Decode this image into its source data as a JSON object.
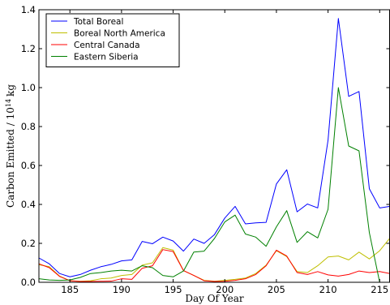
{
  "chart_data": {
    "type": "line",
    "title": "",
    "xlabel": "Day Of Year",
    "ylabel": "Carbon Emitted / 10",
    "ylabel_exponent": "14",
    "ylabel_unit": "kg",
    "xlim": [
      182,
      216
    ],
    "ylim": [
      0,
      1.4
    ],
    "xticks": [
      "185",
      "190",
      "195",
      "200",
      "205",
      "210",
      "215"
    ],
    "yticks": [
      "0.0",
      "0.2",
      "0.4",
      "0.6",
      "0.8",
      "1.0",
      "1.2",
      "1.4"
    ],
    "x": [
      182,
      183,
      184,
      185,
      186,
      187,
      188,
      189,
      190,
      191,
      192,
      193,
      194,
      195,
      196,
      197,
      198,
      199,
      200,
      201,
      202,
      203,
      204,
      205,
      206,
      207,
      208,
      209,
      210,
      211,
      212,
      213,
      214,
      215,
      216
    ],
    "grid": false,
    "legend_position": "top-left",
    "series": [
      {
        "name": "Total Boreal",
        "color": "#0000ff",
        "values": [
          0.125,
          0.095,
          0.045,
          0.028,
          0.04,
          0.062,
          0.08,
          0.092,
          0.11,
          0.115,
          0.21,
          0.198,
          0.232,
          0.212,
          0.16,
          0.222,
          0.2,
          0.245,
          0.33,
          0.39,
          0.3,
          0.305,
          0.308,
          0.505,
          0.578,
          0.362,
          0.402,
          0.382,
          0.73,
          1.355,
          0.955,
          0.98,
          0.48,
          0.382,
          0.39
        ]
      },
      {
        "name": "Boreal North America",
        "color": "#bfbf00",
        "values": [
          0.09,
          0.08,
          0.032,
          0.008,
          0.005,
          0.008,
          0.018,
          0.022,
          0.035,
          0.04,
          0.088,
          0.1,
          0.178,
          0.165,
          0.06,
          0.035,
          0.01,
          0.005,
          0.01,
          0.015,
          0.022,
          0.045,
          0.088,
          0.162,
          0.132,
          0.055,
          0.05,
          0.085,
          0.13,
          0.135,
          0.115,
          0.155,
          0.12,
          0.162,
          0.228
        ]
      },
      {
        "name": "Central Canada",
        "color": "#ff0000",
        "values": [
          0.095,
          0.075,
          0.03,
          0.008,
          0.004,
          0.004,
          0.005,
          0.006,
          0.018,
          0.015,
          0.072,
          0.085,
          0.168,
          0.158,
          0.06,
          0.035,
          0.008,
          0.004,
          0.005,
          0.01,
          0.018,
          0.04,
          0.085,
          0.165,
          0.135,
          0.05,
          0.04,
          0.055,
          0.038,
          0.032,
          0.04,
          0.058,
          0.05,
          0.055,
          0.045
        ]
      },
      {
        "name": "Eastern Siberia",
        "color": "#008000",
        "values": [
          0.018,
          0.012,
          0.01,
          0.012,
          0.025,
          0.045,
          0.05,
          0.058,
          0.062,
          0.058,
          0.085,
          0.075,
          0.035,
          0.028,
          0.058,
          0.155,
          0.16,
          0.225,
          0.31,
          0.345,
          0.248,
          0.232,
          0.185,
          0.285,
          0.368,
          0.205,
          0.26,
          0.228,
          0.375,
          1.0,
          0.7,
          0.675,
          0.255,
          0.0,
          0.0
        ]
      }
    ]
  }
}
